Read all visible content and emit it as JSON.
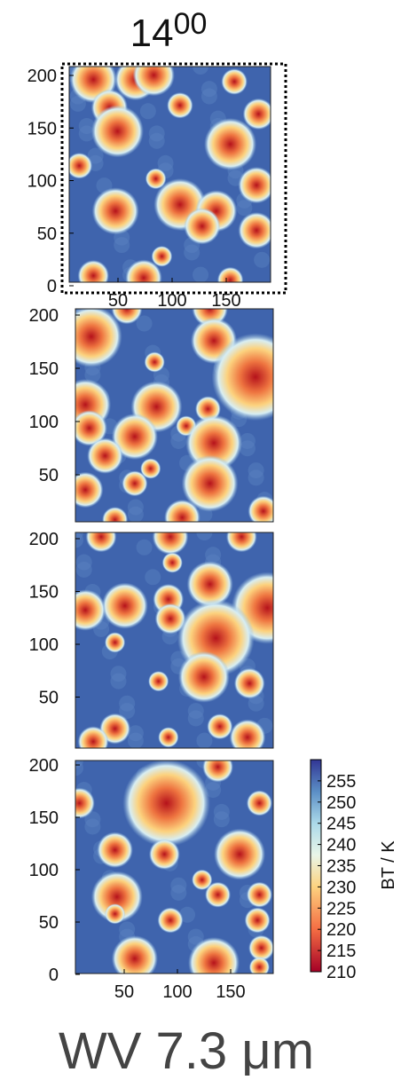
{
  "chart_data": {
    "type": "image-panels",
    "title": {
      "main": "14",
      "sup": "00"
    },
    "panels": [
      {
        "ylim": [
          0,
          200
        ],
        "yticks": [
          0,
          50,
          100,
          150,
          200
        ],
        "xlim": [
          0,
          190
        ],
        "xticks": [
          50,
          100,
          150
        ]
      },
      {
        "ylim": [
          0,
          200
        ],
        "yticks": [
          50,
          100,
          150,
          200
        ]
      },
      {
        "ylim": [
          0,
          200
        ],
        "yticks": [
          50,
          100,
          150,
          200
        ]
      },
      {
        "ylim": [
          0,
          200
        ],
        "yticks": [
          0,
          50,
          100,
          150,
          200
        ],
        "xlim": [
          0,
          190
        ],
        "xticks": [
          50,
          100,
          150
        ]
      }
    ],
    "colorbar": {
      "lim": [
        210,
        260
      ],
      "ticks": [
        255,
        250,
        245,
        240,
        235,
        230,
        225,
        220,
        215,
        210
      ],
      "label": "BT / K"
    },
    "caption": "WV 7.3 μm"
  }
}
